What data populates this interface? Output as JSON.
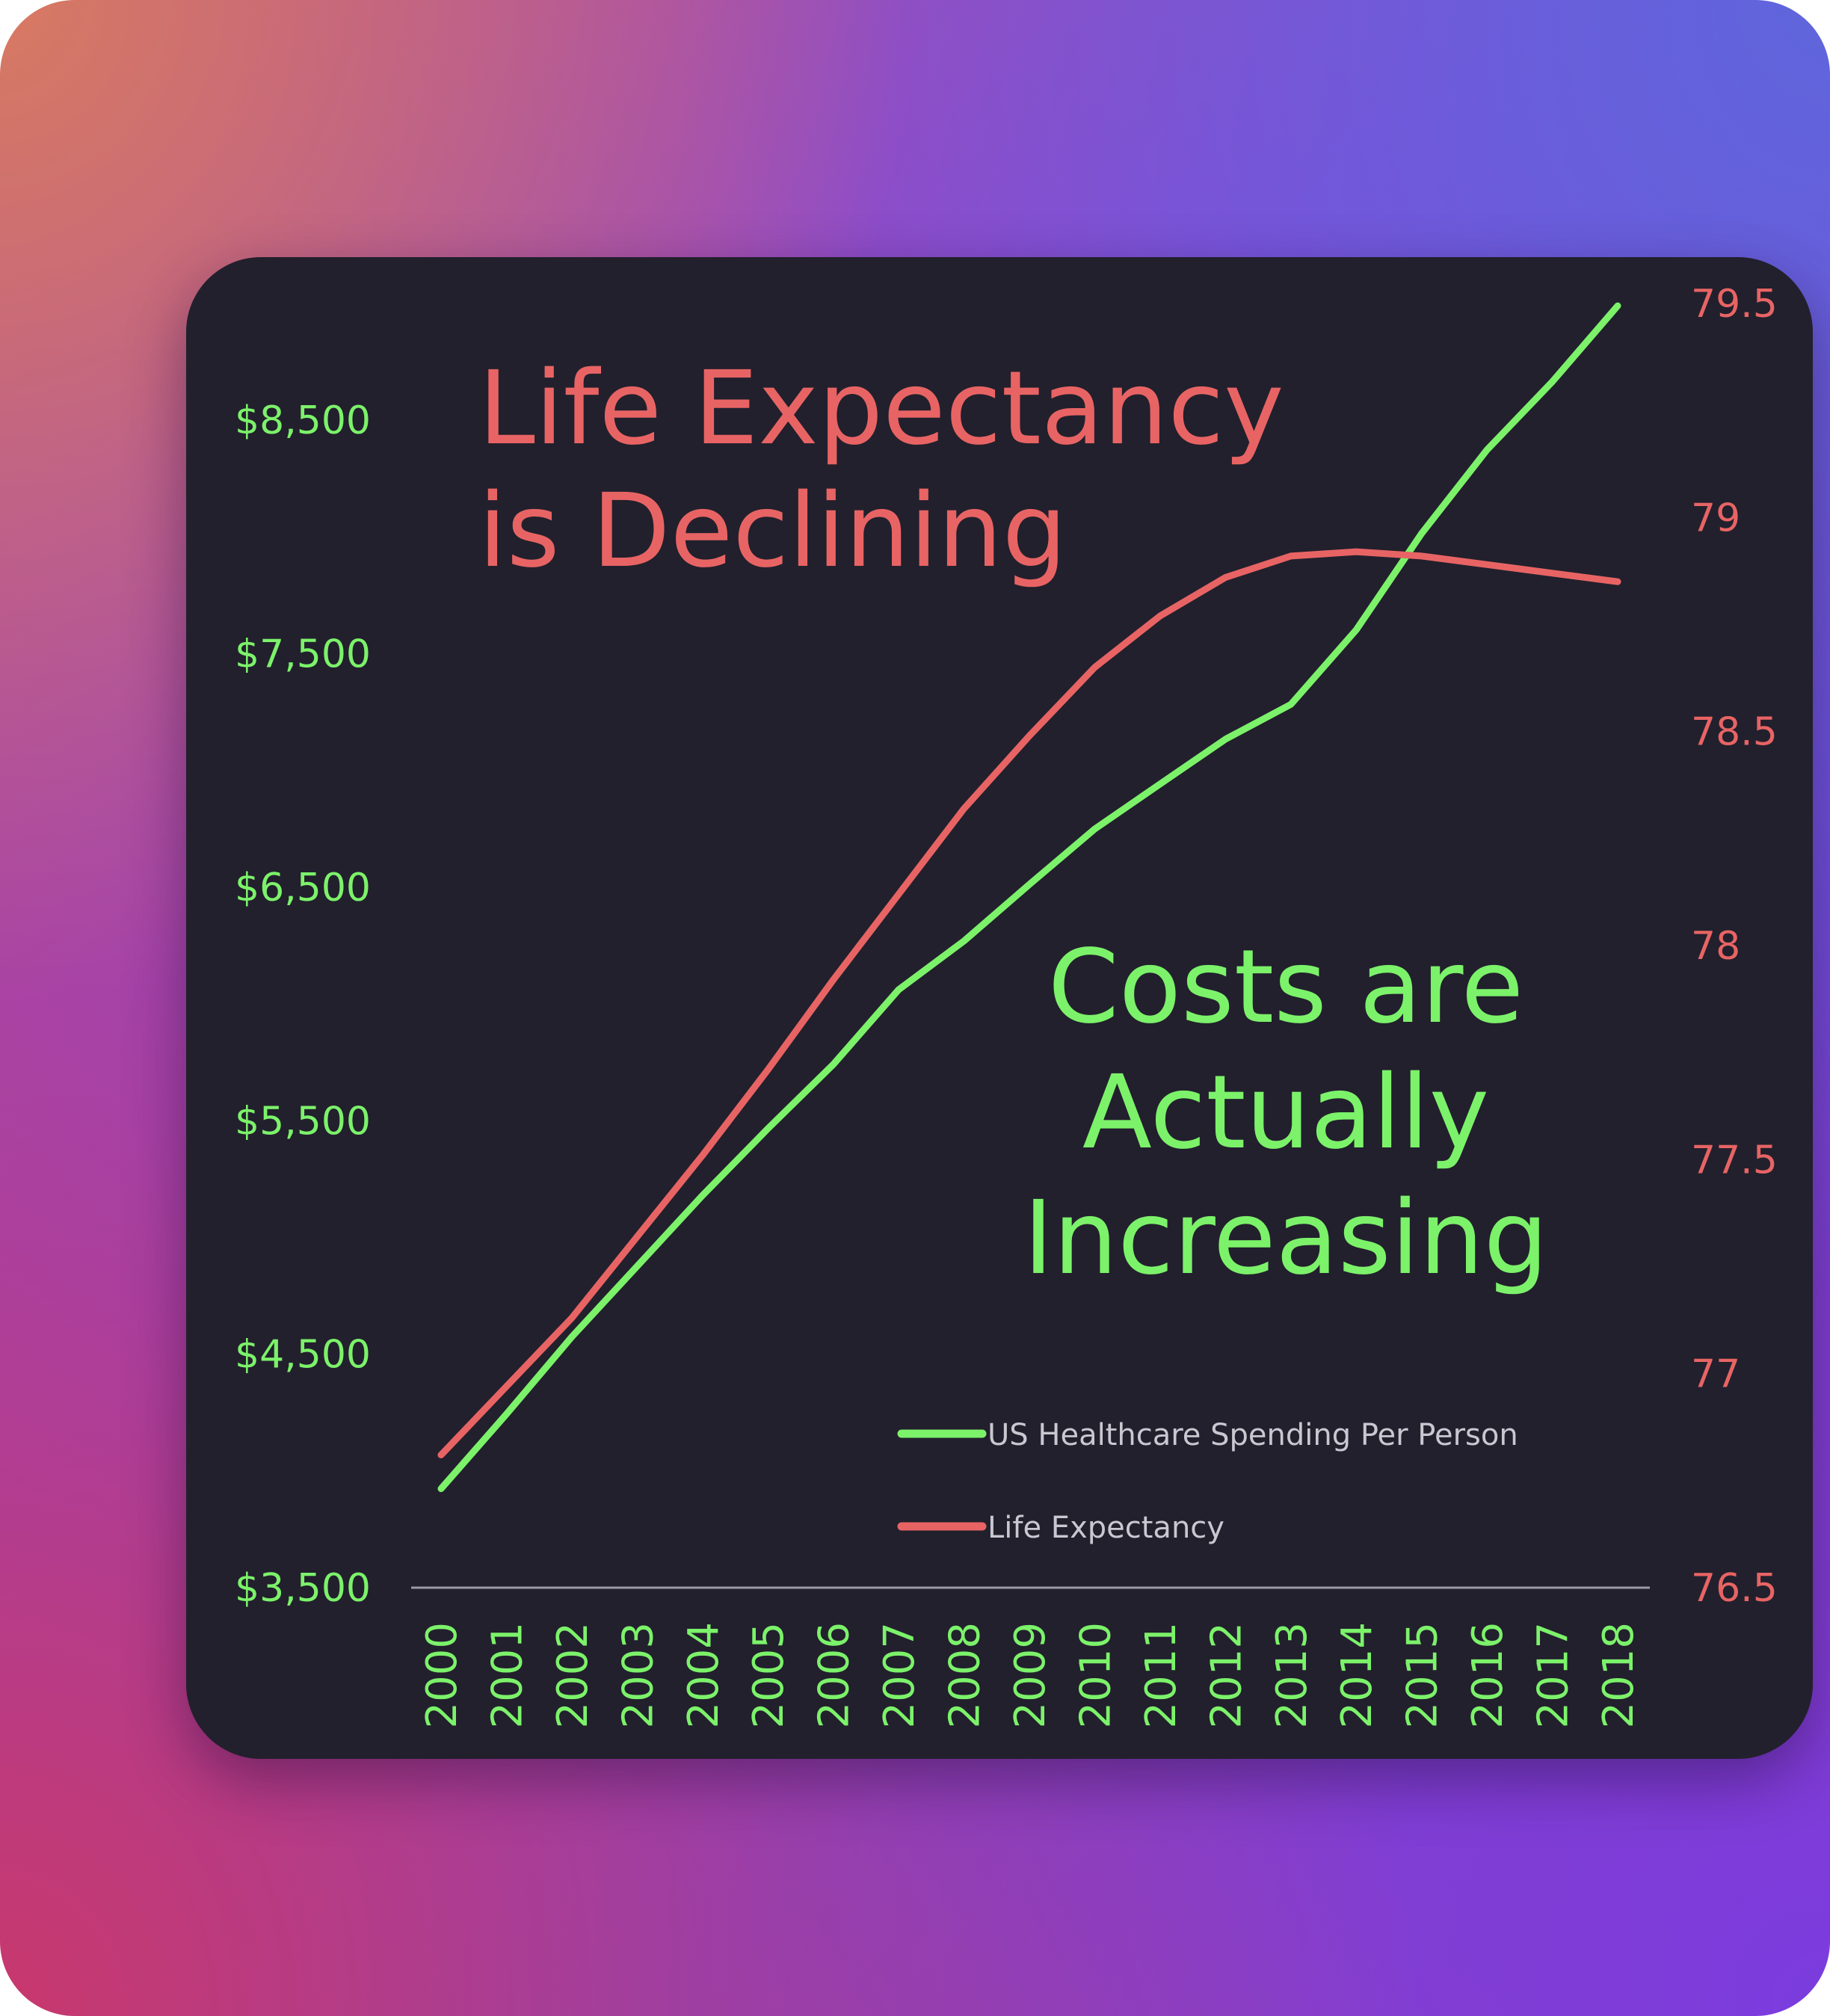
{
  "chart_data": {
    "type": "line",
    "title_left": [
      "Life Expectancy",
      "is Declining"
    ],
    "title_right": [
      "Costs are",
      "Actually",
      "Increasing"
    ],
    "x": [
      "2000",
      "2001",
      "2002",
      "2003",
      "2004",
      "2005",
      "2006",
      "2007",
      "2008",
      "2009",
      "2010",
      "2011",
      "2012",
      "2013",
      "2014",
      "2015",
      "2016",
      "2017",
      "2018"
    ],
    "y_left": {
      "range": [
        3500,
        9000
      ],
      "ticks": [
        3500,
        4500,
        5500,
        6500,
        7500,
        8500
      ],
      "tick_labels": [
        "$3,500",
        "$4,500",
        "$5,500",
        "$6,500",
        "$7,500",
        "$8,500"
      ]
    },
    "y_right": {
      "range": [
        76.5,
        79.5
      ],
      "ticks": [
        76.5,
        77,
        77.5,
        78,
        78.5,
        79,
        79.5
      ],
      "tick_labels": [
        "76.5",
        "77",
        "77.5",
        "78",
        "78.5",
        "79",
        "79.5"
      ]
    },
    "series": [
      {
        "name": "US Healthcare Spending Per Person",
        "axis": "left",
        "color": "#7cf26a",
        "values": [
          3924,
          4243,
          4574,
          4877,
          5180,
          5466,
          5741,
          6061,
          6270,
          6512,
          6749,
          6942,
          7134,
          7283,
          7602,
          8015,
          8373,
          8665,
          8990
        ]
      },
      {
        "name": "Life Expectancy",
        "axis": "right",
        "color": "#e86464",
        "values": [
          76.81,
          76.97,
          77.13,
          77.32,
          77.51,
          77.71,
          77.92,
          78.12,
          78.32,
          78.49,
          78.65,
          78.77,
          78.86,
          78.91,
          78.92,
          78.91,
          78.89,
          78.87,
          78.85
        ]
      }
    ],
    "legend_position": "bottom-right",
    "grid": false
  },
  "colors": {
    "green": "#7cf26a",
    "red": "#e86464",
    "card": "#22202d",
    "axis": "#9a98a4",
    "legend_text": "#c9c7d0"
  }
}
